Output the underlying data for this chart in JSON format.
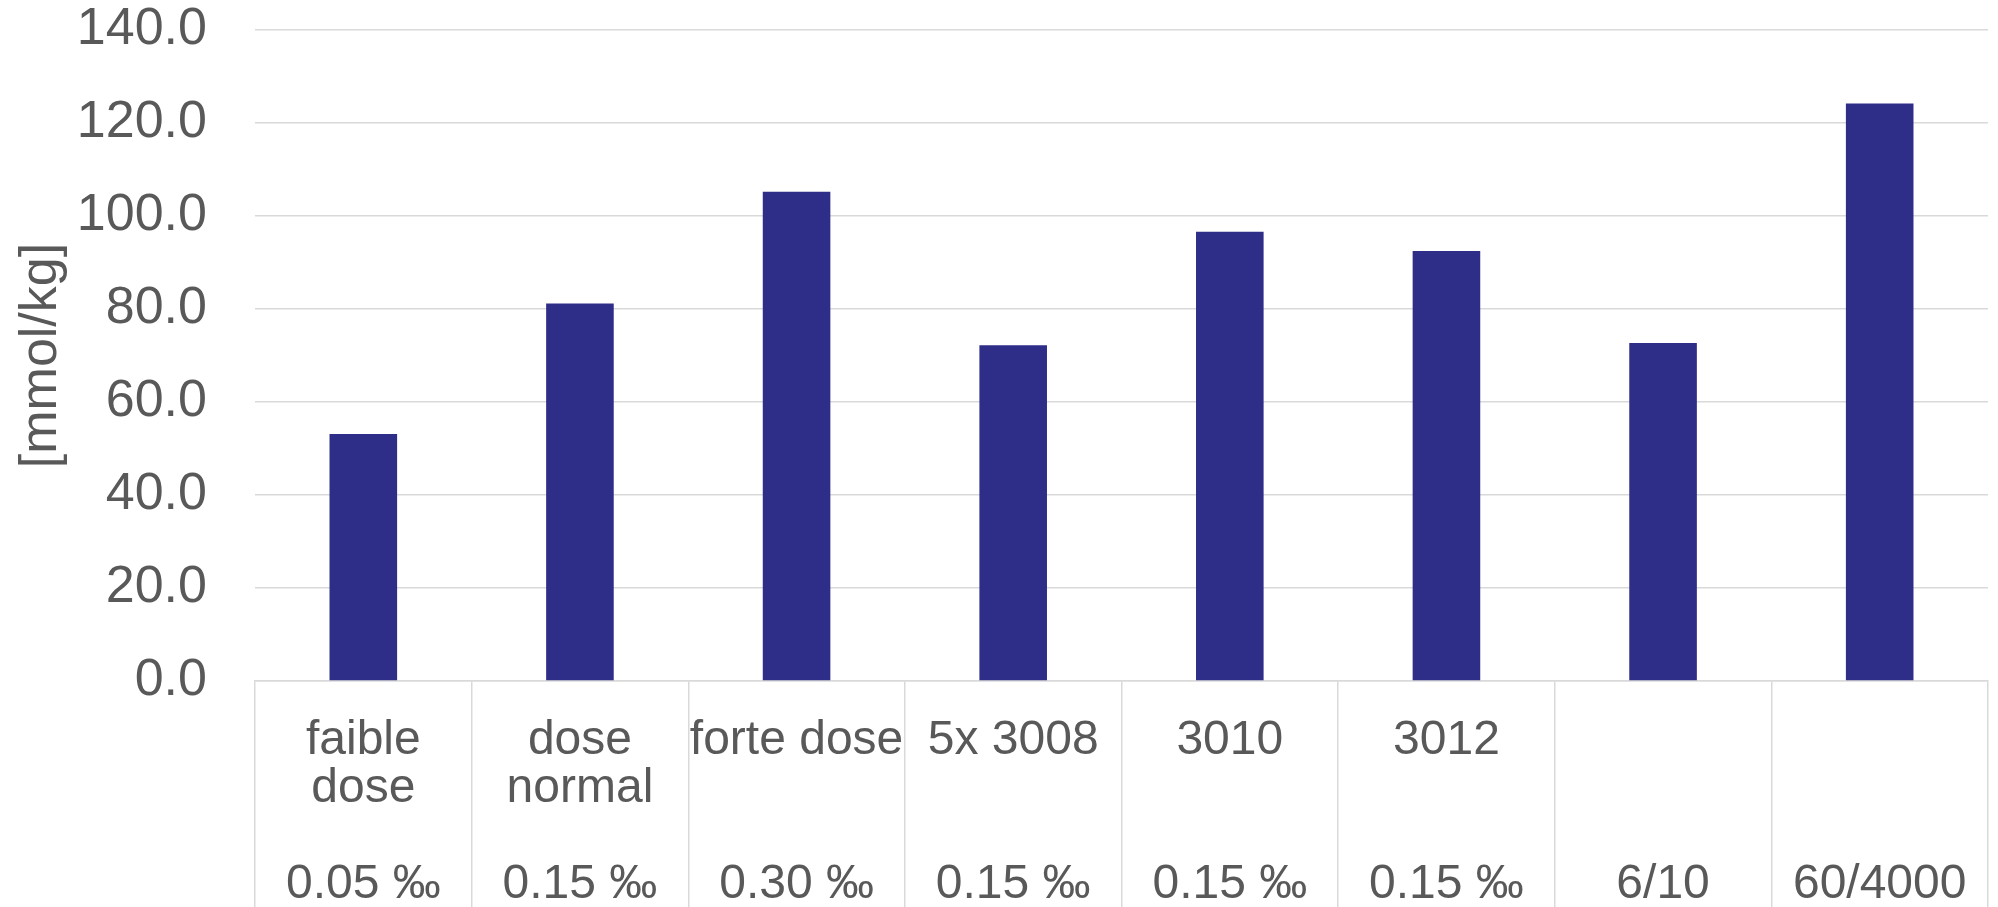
{
  "chart_data": {
    "type": "bar",
    "categories": [
      "faible dose\n0.05 ‰",
      "dose normal\n0.15 ‰",
      "forte dose\n0.30 ‰",
      "5x 3008\n0.15 ‰",
      "3010\n0.15 ‰",
      "3012\n0.15 ‰",
      "\n6/10",
      "\n60/4000"
    ],
    "values": [
      53.1,
      81.2,
      105.2,
      72.2,
      96.6,
      92.5,
      72.7,
      124.2
    ],
    "color": "#2e2d87",
    "ylabel": "[mmol/kg]",
    "ylim": [
      0,
      140
    ],
    "yticks": [
      {
        "value": 0,
        "label": "0.0"
      },
      {
        "value": 20,
        "label": "20.0"
      },
      {
        "value": 40,
        "label": "40.0"
      },
      {
        "value": 60,
        "label": "60.0"
      },
      {
        "value": 80,
        "label": "80.0"
      },
      {
        "value": 100,
        "label": "100.0"
      },
      {
        "value": 120,
        "label": "120.0"
      },
      {
        "value": 140,
        "label": "140.0"
      }
    ],
    "grid": "y"
  }
}
